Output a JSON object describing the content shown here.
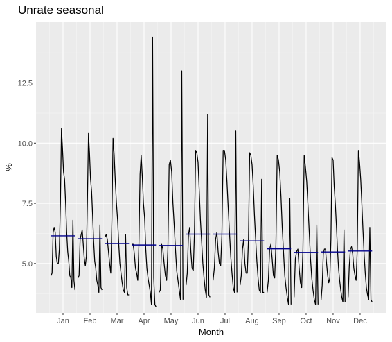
{
  "chart_data": {
    "type": "line",
    "title": "Unrate seasonal",
    "xlabel": "Month",
    "ylabel": "%",
    "ylim": [
      2.95,
      15.05
    ],
    "yticks": [
      5.0,
      7.5,
      10.0,
      12.5
    ],
    "ytick_labels": [
      "5.0",
      "7.5",
      "10.0",
      "12.5"
    ],
    "grid": true,
    "legend": "none",
    "colors": {
      "panel": "#ebebeb",
      "grid_major": "#ffffff",
      "grid_minor": "#f5f5f5",
      "series": "#000000",
      "mean": "#00008b",
      "tick": "#333333"
    },
    "categories": [
      "Jan",
      "Feb",
      "Mar",
      "Apr",
      "May",
      "Jun",
      "Jul",
      "Aug",
      "Sep",
      "Oct",
      "Nov",
      "Dec"
    ],
    "series": [
      {
        "role": "monthly-values",
        "values": [
          [
            4.5,
            4.6,
            6.3,
            6.5,
            6.3,
            5.3,
            5.0,
            5.0,
            5.6,
            7.5,
            10.6,
            9.8,
            8.8,
            8.5,
            7.5,
            6.3,
            5.5,
            5.1,
            4.5,
            4.4,
            4.0,
            6.8,
            4.3,
            3.9
          ],
          [
            4.4,
            4.5,
            6.0,
            6.2,
            6.4,
            5.8,
            5.2,
            4.9,
            5.3,
            7.6,
            10.4,
            9.6,
            8.5,
            8.0,
            7.0,
            5.9,
            5.1,
            4.8,
            4.3,
            4.1,
            3.8,
            6.6,
            4.0,
            3.9
          ],
          [
            6.1,
            6.2,
            6.0,
            5.5,
            5.0,
            4.6,
            6.8,
            10.2,
            9.5,
            8.4,
            7.5,
            6.8,
            5.8,
            5.0,
            4.6,
            4.2,
            3.9,
            3.8,
            6.2,
            4.0,
            3.7,
            3.7
          ],
          [
            5.8,
            5.8,
            5.4,
            4.8,
            4.6,
            4.3,
            5.8,
            8.7,
            9.5,
            8.6,
            7.5,
            6.9,
            5.6,
            4.8,
            4.4,
            4.1,
            3.8,
            3.3,
            14.4,
            4.4,
            3.3,
            3.2
          ],
          [
            3.8,
            3.9,
            5.8,
            5.6,
            5.0,
            4.5,
            4.3,
            5.6,
            9.1,
            9.3,
            8.8,
            7.5,
            6.6,
            5.6,
            4.7,
            4.3,
            3.9,
            3.5,
            13.0,
            3.5
          ],
          [
            4.1,
            4.6,
            6.2,
            6.5,
            5.5,
            4.8,
            4.7,
            6.3,
            9.7,
            9.6,
            9.2,
            8.0,
            6.8,
            5.9,
            5.0,
            4.4,
            3.9,
            3.6,
            11.2,
            3.7,
            3.6
          ],
          [
            4.3,
            4.8,
            6.0,
            6.3,
            5.5,
            5.0,
            4.9,
            6.2,
            9.7,
            9.7,
            9.3,
            8.4,
            7.3,
            6.3,
            5.3,
            4.6,
            4.0,
            3.8,
            10.5,
            3.8
          ],
          [
            4.1,
            4.5,
            5.6,
            6.0,
            5.0,
            4.6,
            4.6,
            6.0,
            9.6,
            9.5,
            9.1,
            8.2,
            7.0,
            6.0,
            5.1,
            4.4,
            3.9,
            3.8,
            8.5,
            3.8,
            3.8
          ],
          [
            3.8,
            4.3,
            5.6,
            5.8,
            5.2,
            4.5,
            4.4,
            5.8,
            9.5,
            9.3,
            8.8,
            7.8,
            6.5,
            5.5,
            4.5,
            4.0,
            3.6,
            3.3,
            7.7,
            3.3
          ],
          [
            3.6,
            5.2,
            5.5,
            5.6,
            4.8,
            4.2,
            4.0,
            5.6,
            9.5,
            9.0,
            8.4,
            7.4,
            6.3,
            5.2,
            4.4,
            3.9,
            3.5,
            3.3,
            6.6,
            3.3
          ],
          [
            3.5,
            4.1,
            5.4,
            5.6,
            5.6,
            5.0,
            4.5,
            4.2,
            4.4,
            6.0,
            9.4,
            9.3,
            8.2,
            7.5,
            6.6,
            5.6,
            4.8,
            4.3,
            3.9,
            3.6,
            3.4,
            6.4,
            3.4
          ],
          [
            3.6,
            4.9,
            5.6,
            5.7,
            5.4,
            4.8,
            4.5,
            4.3,
            5.6,
            9.7,
            9.2,
            8.5,
            7.5,
            6.4,
            5.4,
            4.6,
            4.0,
            3.7,
            3.5,
            6.5,
            3.5,
            3.4
          ]
        ]
      },
      {
        "role": "monthly-mean",
        "values": [
          6.15,
          6.03,
          5.83,
          5.77,
          5.75,
          6.22,
          6.22,
          5.94,
          5.61,
          5.46,
          5.48,
          5.52
        ]
      }
    ]
  }
}
